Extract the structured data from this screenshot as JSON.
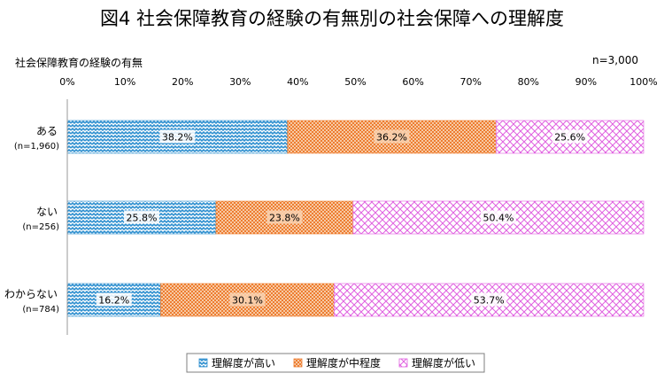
{
  "chart_data": {
    "type": "bar",
    "orientation": "horizontal-stacked-100",
    "title": "図4  社会保障教育の経験の有無別の社会保障への理解度",
    "ylabel": "社会保障教育の経験の有無",
    "sample_note": "n=3,000",
    "xlim": [
      0,
      100
    ],
    "x_ticks": [
      "0%",
      "10%",
      "20%",
      "30%",
      "40%",
      "50%",
      "60%",
      "70%",
      "80%",
      "90%",
      "100%"
    ],
    "categories": [
      {
        "label": "ある",
        "n_label": "(n=1,960)"
      },
      {
        "label": "ない",
        "n_label": "(n=256)"
      },
      {
        "label": "わからない",
        "n_label": "(n=784)"
      }
    ],
    "series": [
      {
        "name": "理解度が高い",
        "color": "#2e8fcf",
        "pattern": "zigzag",
        "values": [
          38.2,
          25.8,
          16.2
        ],
        "labels": [
          "38.2%",
          "25.8%",
          "16.2%"
        ]
      },
      {
        "name": "理解度が中程度",
        "color": "#ed7d31",
        "pattern": "dots",
        "values": [
          36.2,
          23.8,
          30.1
        ],
        "labels": [
          "36.2%",
          "23.8%",
          "30.1%"
        ]
      },
      {
        "name": "理解度が低い",
        "color": "#e060e0",
        "pattern": "crosshatch",
        "values": [
          25.6,
          50.4,
          53.7
        ],
        "labels": [
          "25.6%",
          "50.4%",
          "53.7%"
        ]
      }
    ],
    "grid": false,
    "legend_position": "bottom"
  }
}
